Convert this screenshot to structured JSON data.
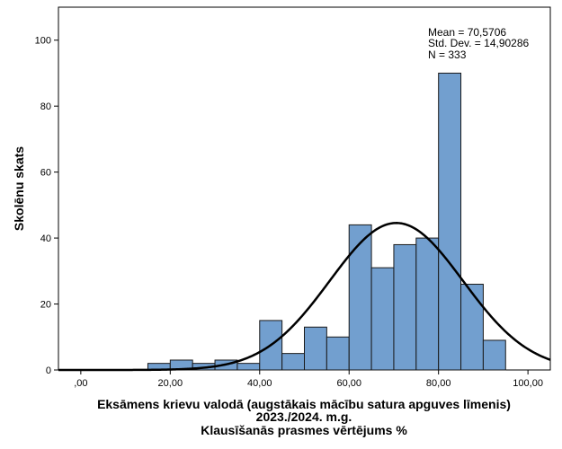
{
  "chart_data": {
    "type": "histogram",
    "xlabel_lines": [
      "Eksāmens krievu valodā (augstākais mācību satura apguves līmenis)",
      "2023./2024. m.g.",
      "Klausīšanās prasmes vērtējums %"
    ],
    "ylabel": "Skolēnu skats",
    "xlim": [
      -5,
      105
    ],
    "ylim": [
      0,
      110
    ],
    "x_ticks": [
      0,
      20,
      40,
      60,
      80,
      100
    ],
    "x_tick_labels": [
      ",00",
      "20,00",
      "40,00",
      "60,00",
      "80,00",
      "100,00"
    ],
    "y_ticks": [
      0,
      20,
      40,
      60,
      80,
      100
    ],
    "y_tick_labels": [
      "0",
      "20",
      "40",
      "60",
      "80",
      "100"
    ],
    "bins": [
      {
        "start": 15,
        "end": 20,
        "count": 2
      },
      {
        "start": 20,
        "end": 25,
        "count": 3
      },
      {
        "start": 25,
        "end": 30,
        "count": 2
      },
      {
        "start": 30,
        "end": 35,
        "count": 3
      },
      {
        "start": 35,
        "end": 40,
        "count": 2
      },
      {
        "start": 40,
        "end": 45,
        "count": 15
      },
      {
        "start": 45,
        "end": 50,
        "count": 5
      },
      {
        "start": 50,
        "end": 55,
        "count": 13
      },
      {
        "start": 55,
        "end": 60,
        "count": 10
      },
      {
        "start": 60,
        "end": 65,
        "count": 44
      },
      {
        "start": 65,
        "end": 70,
        "count": 31
      },
      {
        "start": 70,
        "end": 75,
        "count": 38
      },
      {
        "start": 75,
        "end": 80,
        "count": 40
      },
      {
        "start": 80,
        "end": 85,
        "count": 90
      },
      {
        "start": 85,
        "end": 90,
        "count": 26
      },
      {
        "start": 90,
        "end": 95,
        "count": 9
      }
    ],
    "normal_curve": {
      "mean": 70.5706,
      "std_dev": 14.90286,
      "n": 333,
      "bin_width": 5
    },
    "stats_lines": [
      "Mean = 70,5706",
      "Std. Dev. = 14,90286",
      "N = 333"
    ],
    "colors": {
      "bar_fill": "#729fcf",
      "bar_stroke": "#1a1a1a",
      "curve": "#000000",
      "background": "#ffffff"
    },
    "grid": false
  }
}
